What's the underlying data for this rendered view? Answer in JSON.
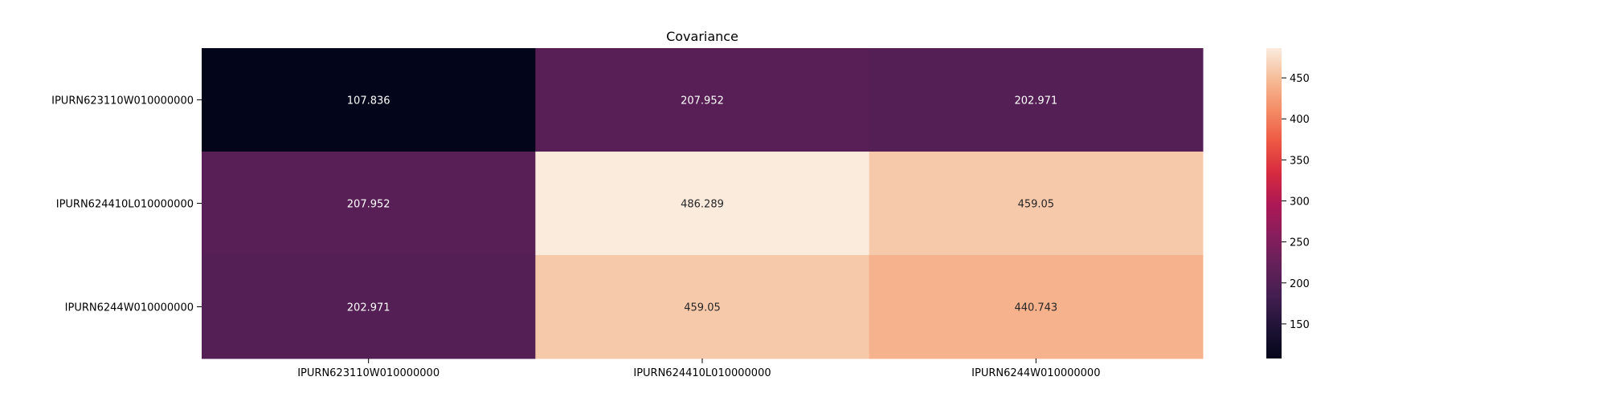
{
  "chart_data": {
    "type": "heatmap",
    "title": "Covariance",
    "x_categories": [
      "IPURN623110W010000000",
      "IPURN624410L010000000",
      "IPURN6244W010000000"
    ],
    "y_categories": [
      "IPURN623110W010000000",
      "IPURN624410L010000000",
      "IPURN6244W010000000"
    ],
    "values": [
      [
        107.836,
        207.952,
        202.971
      ],
      [
        207.952,
        486.289,
        459.05
      ],
      [
        202.971,
        459.05,
        440.743
      ]
    ],
    "value_labels": [
      [
        "107.836",
        "207.952",
        "202.971"
      ],
      [
        "207.952",
        "486.289",
        "459.05"
      ],
      [
        "202.971",
        "459.05",
        "440.743"
      ]
    ],
    "colorbar": {
      "colormap": "rocket",
      "range": [
        107.836,
        486.289
      ],
      "ticks": [
        150,
        200,
        250,
        300,
        350,
        400,
        450
      ],
      "tick_labels": [
        "150",
        "200",
        "250",
        "300",
        "350",
        "400",
        "450"
      ]
    }
  }
}
